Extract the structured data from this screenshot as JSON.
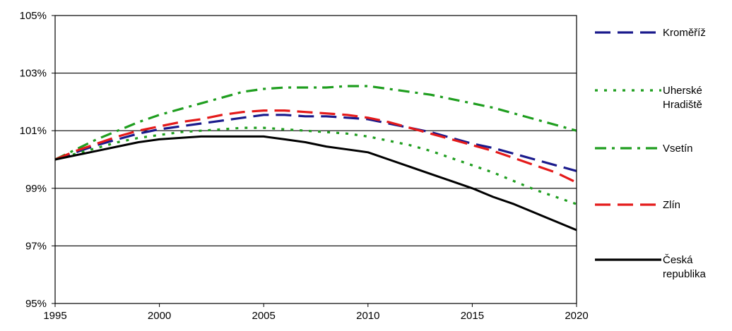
{
  "chart_data": {
    "type": "line",
    "title": "",
    "xlabel": "",
    "ylabel": "",
    "xlim": [
      1995,
      2020
    ],
    "ylim": [
      95,
      105
    ],
    "x_ticks": [
      1995,
      2000,
      2005,
      2010,
      2015,
      2020
    ],
    "x_tick_labels": [
      "1995",
      "2000",
      "2005",
      "2010",
      "2015",
      "2020"
    ],
    "y_ticks": [
      95,
      97,
      99,
      101,
      103,
      105
    ],
    "y_tick_labels": [
      "95%",
      "97%",
      "99%",
      "101%",
      "103%",
      "105%"
    ],
    "grid": "horizontal",
    "legend_position": "right",
    "x": [
      1995,
      1996,
      1997,
      1998,
      1999,
      2000,
      2001,
      2002,
      2003,
      2004,
      2005,
      2006,
      2007,
      2008,
      2009,
      2010,
      2011,
      2012,
      2013,
      2014,
      2015,
      2016,
      2017,
      2018,
      2019,
      2020
    ],
    "series": [
      {
        "name": "Kroměříž",
        "legend_lines": [
          "Kroměříž"
        ],
        "color": "#1a1a8c",
        "dash": "long-dash",
        "values": [
          100.0,
          100.25,
          100.5,
          100.7,
          100.9,
          101.05,
          101.15,
          101.25,
          101.35,
          101.45,
          101.55,
          101.55,
          101.5,
          101.5,
          101.45,
          101.4,
          101.25,
          101.1,
          100.95,
          100.75,
          100.55,
          100.4,
          100.2,
          100.0,
          99.8,
          99.6
        ]
      },
      {
        "name": "Uherské Hradiště",
        "legend_lines": [
          "Uherské",
          "Hradiště"
        ],
        "color": "#1f9e1f",
        "dash": "dotted",
        "values": [
          100.0,
          100.2,
          100.4,
          100.6,
          100.75,
          100.85,
          100.95,
          101.0,
          101.05,
          101.1,
          101.1,
          101.05,
          101.0,
          100.95,
          100.9,
          100.8,
          100.65,
          100.5,
          100.3,
          100.05,
          99.8,
          99.55,
          99.25,
          98.95,
          98.7,
          98.45
        ]
      },
      {
        "name": "Vsetín",
        "legend_lines": [
          "Vsetín"
        ],
        "color": "#1f9e1f",
        "dash": "dash-dot",
        "values": [
          100.0,
          100.35,
          100.7,
          101.0,
          101.3,
          101.55,
          101.75,
          101.95,
          102.15,
          102.35,
          102.45,
          102.5,
          102.5,
          102.5,
          102.55,
          102.55,
          102.45,
          102.35,
          102.25,
          102.1,
          101.95,
          101.8,
          101.6,
          101.4,
          101.2,
          101.0
        ]
      },
      {
        "name": "Zlín",
        "legend_lines": [
          "Zlín"
        ],
        "color": "#e41a1a",
        "dash": "long-dash",
        "values": [
          100.0,
          100.3,
          100.55,
          100.8,
          101.0,
          101.15,
          101.3,
          101.4,
          101.55,
          101.65,
          101.7,
          101.7,
          101.65,
          101.6,
          101.55,
          101.45,
          101.3,
          101.1,
          100.9,
          100.7,
          100.5,
          100.3,
          100.05,
          99.8,
          99.55,
          99.2
        ]
      },
      {
        "name": "Česká republika",
        "legend_lines": [
          "Česká",
          "republika"
        ],
        "color": "#000000",
        "dash": "solid",
        "values": [
          100.0,
          100.15,
          100.3,
          100.45,
          100.6,
          100.7,
          100.75,
          100.8,
          100.8,
          100.8,
          100.8,
          100.7,
          100.6,
          100.45,
          100.35,
          100.25,
          100.0,
          99.75,
          99.5,
          99.25,
          99.0,
          98.7,
          98.45,
          98.15,
          97.85,
          97.55
        ]
      }
    ]
  }
}
